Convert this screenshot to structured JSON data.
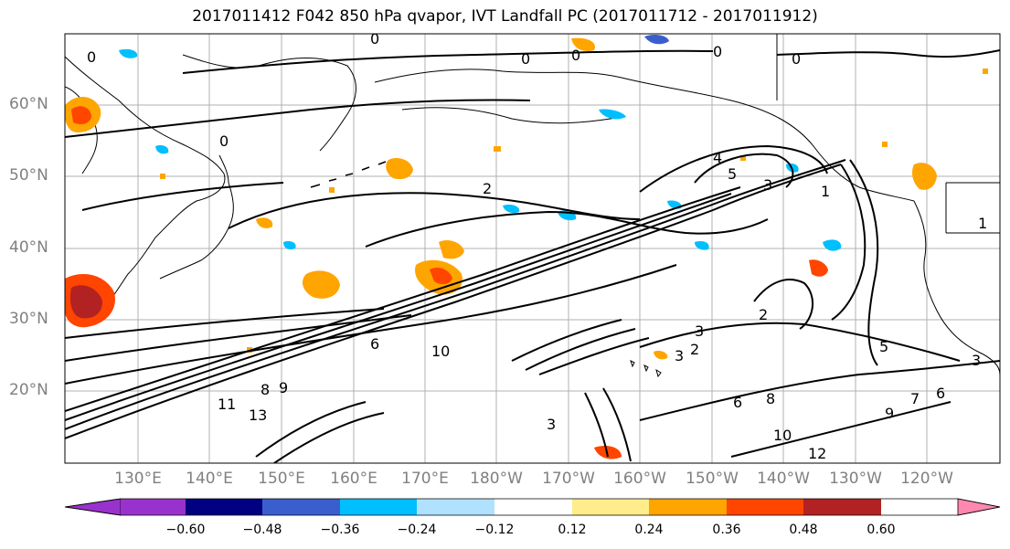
{
  "title": "2017011412 F042 850 hPa qvapor, IVT Landfall PC (2017011712 - 2017011912)",
  "latitude_labels": [
    "60°N",
    "50°N",
    "40°N",
    "30°N",
    "20°N"
  ],
  "longitude_labels": [
    "130°E",
    "140°E",
    "150°E",
    "160°E",
    "170°E",
    "180°W",
    "170°W",
    "160°W",
    "150°W",
    "140°W",
    "130°W",
    "120°W"
  ],
  "colorbar": {
    "ticks": [
      "−0.60",
      "−0.48",
      "−0.36",
      "−0.24",
      "−0.12",
      "0.12",
      "0.24",
      "0.36",
      "0.48",
      "0.60"
    ],
    "colors": [
      "#9932CC",
      "#000080",
      "#3A5FCD",
      "#00BFFF",
      "#B0E2FF",
      "#FFFFFF",
      "#FFEC8B",
      "#FFA500",
      "#FF4500",
      "#B22222",
      "#FF88B0"
    ]
  },
  "contour_labels": [
    "0",
    "0",
    "0",
    "0",
    "0",
    "0",
    "0",
    "2",
    "3",
    "4",
    "5",
    "1",
    "2",
    "3",
    "3",
    "2",
    "5",
    "6",
    "10",
    "9",
    "8",
    "11",
    "13",
    "3",
    "6",
    "8",
    "9",
    "10",
    "12",
    "7",
    "6",
    "1",
    "3"
  ]
}
